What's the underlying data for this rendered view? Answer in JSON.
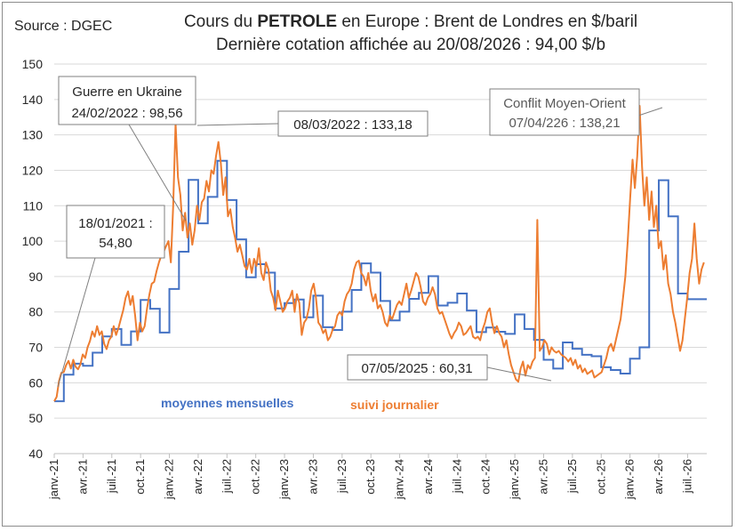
{
  "source": "Source : DGEC",
  "title": {
    "line1_prefix": "Cours du ",
    "line1_bold": "PETROLE",
    "line1_suffix": " en Europe : Brent de Londres en $/baril",
    "line2": "Dernière cotation affichée au 20/08/2026 : 94,00 $/b"
  },
  "colors": {
    "monthly": "#4472c4",
    "daily": "#ed7d31",
    "grid": "#d9d9d9",
    "text": "#262626"
  },
  "legend": {
    "monthly": "moyennes mensuelles",
    "daily": "suivi journalier"
  },
  "annotations": [
    {
      "id": "a2021",
      "lines": [
        "18/01/2021 :",
        "54,80"
      ]
    },
    {
      "id": "ukraine",
      "lines": [
        "Guerre en Ukraine",
        "24/02/2022 : 98,56"
      ]
    },
    {
      "id": "m2022",
      "lines": [
        "08/03/2022 : 133,18"
      ]
    },
    {
      "id": "mo",
      "lines": [
        "Conflit Moyen-Orient",
        "07/04/226 : 138,21"
      ]
    },
    {
      "id": "m2025",
      "lines": [
        "07/05/2025 : 60,31"
      ]
    }
  ],
  "chart_data": {
    "type": "line",
    "ylim": [
      40,
      150
    ],
    "yticks": [
      40,
      50,
      60,
      70,
      80,
      90,
      100,
      110,
      120,
      130,
      140,
      150
    ],
    "xticks": [
      "janv.-21",
      "avr.-21",
      "juil.-21",
      "oct.-21",
      "janv.-22",
      "avr.-22",
      "juil.-22",
      "oct.-22",
      "janv.-23",
      "avr.-23",
      "juil.-23",
      "oct.-23",
      "janv.-24",
      "avr.-24",
      "juil.-24",
      "oct.-24",
      "janv.-25",
      "avr.-25",
      "juil.-25",
      "oct.-25",
      "janv.-26",
      "avr.-26",
      "juil.-26"
    ],
    "series": [
      {
        "name": "moyennes mensuelles",
        "step": true,
        "values": [
          54.8,
          62.3,
          65.4,
          64.8,
          68.5,
          73.1,
          75.2,
          70.7,
          74.5,
          83.4,
          80.9,
          74.2,
          86.5,
          97.0,
          117.3,
          105.0,
          112.5,
          122.7,
          111.6,
          100.5,
          89.8,
          93.5,
          91.1,
          81.0,
          82.5,
          83.5,
          78.5,
          84.6,
          75.7,
          74.9,
          80.1,
          86.2,
          93.7,
          91.1,
          83.1,
          77.6,
          80.1,
          83.7,
          85.4,
          90.1,
          81.8,
          82.6,
          85.2,
          80.4,
          74.3,
          75.6,
          74.4,
          73.8,
          79.3,
          75.2,
          72.1,
          66.5,
          64.0,
          71.4,
          69.6,
          67.9,
          67.5,
          64.4,
          63.6,
          62.6,
          66.8,
          70.0,
          103.0,
          117.2,
          107.0,
          85.2,
          83.6,
          83.6
        ]
      },
      {
        "name": "suivi journalier",
        "values": [
          54.8,
          56.0,
          60.5,
          62.8,
          63.0,
          65.0,
          66.2,
          64.0,
          66.5,
          64.5,
          63.8,
          65.2,
          68.0,
          67.0,
          70.0,
          71.8,
          74.5,
          73.0,
          76.0,
          73.5,
          74.5,
          71.0,
          69.5,
          72.0,
          73.0,
          76.0,
          73.5,
          75.5,
          78.0,
          80.5,
          84.0,
          85.8,
          82.0,
          84.5,
          79.0,
          72.0,
          77.0,
          74.5,
          76.0,
          81.0,
          85.0,
          88.0,
          88.5,
          91.5,
          94.0,
          96.0,
          97.0,
          98.6,
          100.0,
          94.0,
          110.0,
          133.2,
          118.0,
          113.0,
          103.0,
          108.0,
          101.0,
          105.0,
          99.0,
          103.0,
          110.0,
          106.0,
          111.0,
          112.0,
          117.0,
          114.0,
          120.0,
          119.0,
          124.0,
          128.0,
          122.0,
          113.0,
          118.0,
          107.0,
          109.0,
          104.0,
          101.0,
          97.0,
          99.0,
          96.0,
          93.0,
          92.0,
          95.0,
          91.0,
          95.0,
          93.0,
          98.0,
          91.0,
          89.0,
          94.0,
          92.0,
          86.0,
          84.0,
          80.5,
          86.0,
          83.0,
          80.0,
          81.0,
          83.0,
          84.0,
          86.0,
          80.0,
          85.0,
          82.5,
          73.5,
          77.0,
          78.0,
          81.0,
          86.0,
          88.0,
          84.0,
          77.0,
          76.0,
          74.0,
          75.0,
          72.0,
          73.0,
          75.0,
          76.0,
          79.0,
          80.0,
          79.0,
          83.0,
          85.0,
          86.0,
          88.0,
          92.0,
          94.0,
          94.5,
          91.0,
          90.0,
          87.5,
          91.0,
          86.0,
          83.0,
          85.0,
          81.0,
          82.0,
          80.0,
          77.0,
          76.0,
          79.0,
          78.0,
          80.0,
          82.0,
          83.0,
          82.0,
          85.0,
          88.0,
          84.0,
          86.0,
          88.5,
          91.0,
          90.0,
          87.0,
          83.0,
          82.0,
          84.0,
          85.0,
          87.0,
          85.0,
          81.0,
          79.5,
          80.0,
          78.0,
          76.0,
          74.0,
          72.5,
          74.0,
          75.0,
          77.0,
          76.0,
          73.5,
          74.0,
          75.0,
          76.0,
          73.0,
          72.5,
          73.0,
          72.0,
          75.0,
          77.0,
          80.0,
          81.0,
          77.0,
          74.0,
          76.0,
          74.0,
          73.0,
          70.0,
          72.0,
          68.0,
          65.0,
          63.0,
          61.0,
          60.3,
          64.0,
          66.0,
          62.0,
          65.0,
          64.0,
          66.0,
          67.0,
          106.0,
          69.0,
          70.0,
          72.0,
          71.0,
          68.0,
          70.0,
          69.0,
          68.5,
          69.0,
          68.0,
          67.5,
          67.0,
          66.0,
          67.0,
          65.0,
          66.5,
          64.0,
          65.0,
          63.0,
          64.0,
          62.5,
          63.0,
          63.5,
          61.5,
          62.0,
          62.5,
          63.0,
          65.0,
          67.0,
          70.0,
          71.0,
          69.0,
          72.0,
          75.0,
          78.0,
          84.0,
          90.0,
          100.0,
          112.0,
          123.0,
          115.0,
          124.0,
          138.2,
          121.0,
          110.0,
          118.0,
          106.0,
          114.0,
          104.0,
          110.0,
          98.0,
          100.0,
          92.0,
          96.0,
          88.0,
          85.0,
          80.0,
          77.0,
          73.0,
          69.0,
          72.0,
          78.0,
          84.0,
          91.0,
          95.0,
          105.0,
          95.0,
          88.0,
          92.0,
          94.0
        ]
      }
    ]
  }
}
